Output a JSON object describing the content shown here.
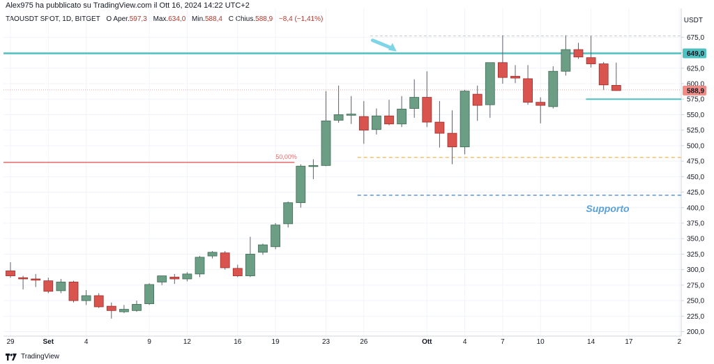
{
  "header": {
    "publisher": "Alex975 ha pubblicato su TradingView.com il Ott 16, 2024 14:22 UTC+2"
  },
  "legend": {
    "symbol": "TAOUSDT SPOT, 1D, BITGET",
    "open_label": "O",
    "open_key": "Aper.",
    "open": "597,3",
    "high_key": "Max.",
    "high": "634,0",
    "low_key": "Min.",
    "low": "588,4",
    "close_label": "C",
    "close_key": "Chius.",
    "close": "588,9",
    "change": "−8,4 (−1,41%)"
  },
  "currency": "USDT",
  "footer": {
    "brand": "TradingView"
  },
  "colors": {
    "up": "#6c9e86",
    "down": "#d9534f",
    "resistance": "#4fc1c1",
    "support_label": "#5aa0d9",
    "fib": "#f0a3a3"
  },
  "chart_data": {
    "type": "candlestick",
    "y_axis": {
      "min": 195,
      "max": 690,
      "ticks": [
        200,
        225,
        250,
        275,
        300,
        325,
        350,
        375,
        400,
        425,
        450,
        475,
        500,
        525,
        550,
        575,
        600,
        625,
        650,
        675
      ],
      "tick_labels": [
        "200,0",
        "225,0",
        "250,0",
        "275,0",
        "300,0",
        "325,0",
        "350,0",
        "375,0",
        "400,0",
        "425,0",
        "450,0",
        "475,0",
        "500,0",
        "525,0",
        "550,0",
        "575,0",
        "600,0",
        "625,0",
        "650,0",
        "675,0"
      ]
    },
    "x_axis": {
      "labels": [
        {
          "i": 0,
          "label": "29"
        },
        {
          "i": 3,
          "label": "Set",
          "bold": true
        },
        {
          "i": 6,
          "label": "4"
        },
        {
          "i": 11,
          "label": "9"
        },
        {
          "i": 14,
          "label": "12"
        },
        {
          "i": 18,
          "label": "16"
        },
        {
          "i": 21,
          "label": "19"
        },
        {
          "i": 25,
          "label": "23"
        },
        {
          "i": 28,
          "label": "26"
        },
        {
          "i": 33,
          "label": "Ott",
          "bold": true
        },
        {
          "i": 36,
          "label": "4"
        },
        {
          "i": 39,
          "label": "7"
        },
        {
          "i": 42,
          "label": "10"
        },
        {
          "i": 46,
          "label": "14"
        },
        {
          "i": 49,
          "label": "17"
        },
        {
          "i": 53,
          "label": "2"
        }
      ]
    },
    "candles": [
      {
        "o": 298,
        "h": 312,
        "l": 287,
        "c": 290
      },
      {
        "o": 287,
        "h": 290,
        "l": 268,
        "c": 285
      },
      {
        "o": 285,
        "h": 293,
        "l": 272,
        "c": 283
      },
      {
        "o": 282,
        "h": 287,
        "l": 262,
        "c": 265
      },
      {
        "o": 266,
        "h": 285,
        "l": 262,
        "c": 280
      },
      {
        "o": 280,
        "h": 282,
        "l": 247,
        "c": 250
      },
      {
        "o": 250,
        "h": 267,
        "l": 243,
        "c": 258
      },
      {
        "o": 258,
        "h": 262,
        "l": 238,
        "c": 240
      },
      {
        "o": 241,
        "h": 247,
        "l": 221,
        "c": 234
      },
      {
        "o": 232,
        "h": 243,
        "l": 230,
        "c": 236
      },
      {
        "o": 234,
        "h": 250,
        "l": 232,
        "c": 244
      },
      {
        "o": 245,
        "h": 278,
        "l": 243,
        "c": 276
      },
      {
        "o": 280,
        "h": 290,
        "l": 275,
        "c": 290
      },
      {
        "o": 288,
        "h": 293,
        "l": 277,
        "c": 285
      },
      {
        "o": 285,
        "h": 296,
        "l": 281,
        "c": 293
      },
      {
        "o": 293,
        "h": 322,
        "l": 288,
        "c": 320
      },
      {
        "o": 322,
        "h": 330,
        "l": 318,
        "c": 328
      },
      {
        "o": 327,
        "h": 330,
        "l": 300,
        "c": 303
      },
      {
        "o": 302,
        "h": 308,
        "l": 288,
        "c": 290
      },
      {
        "o": 290,
        "h": 353,
        "l": 288,
        "c": 325
      },
      {
        "o": 328,
        "h": 342,
        "l": 324,
        "c": 340
      },
      {
        "o": 337,
        "h": 375,
        "l": 333,
        "c": 372
      },
      {
        "o": 374,
        "h": 410,
        "l": 368,
        "c": 408
      },
      {
        "o": 408,
        "h": 470,
        "l": 400,
        "c": 467
      },
      {
        "o": 468,
        "h": 478,
        "l": 446,
        "c": 468
      },
      {
        "o": 468,
        "h": 588,
        "l": 467,
        "c": 540
      },
      {
        "o": 541,
        "h": 597,
        "l": 537,
        "c": 550
      },
      {
        "o": 549,
        "h": 580,
        "l": 535,
        "c": 551
      },
      {
        "o": 547,
        "h": 572,
        "l": 503,
        "c": 525
      },
      {
        "o": 526,
        "h": 560,
        "l": 518,
        "c": 548
      },
      {
        "o": 548,
        "h": 574,
        "l": 533,
        "c": 535
      },
      {
        "o": 535,
        "h": 580,
        "l": 530,
        "c": 559
      },
      {
        "o": 560,
        "h": 607,
        "l": 545,
        "c": 578
      },
      {
        "o": 578,
        "h": 620,
        "l": 530,
        "c": 538
      },
      {
        "o": 538,
        "h": 572,
        "l": 497,
        "c": 520
      },
      {
        "o": 520,
        "h": 557,
        "l": 470,
        "c": 498
      },
      {
        "o": 498,
        "h": 590,
        "l": 486,
        "c": 588
      },
      {
        "o": 583,
        "h": 597,
        "l": 540,
        "c": 565
      },
      {
        "o": 566,
        "h": 634,
        "l": 545,
        "c": 634
      },
      {
        "o": 634,
        "h": 678,
        "l": 600,
        "c": 610
      },
      {
        "o": 612,
        "h": 630,
        "l": 601,
        "c": 609
      },
      {
        "o": 608,
        "h": 630,
        "l": 566,
        "c": 570
      },
      {
        "o": 570,
        "h": 578,
        "l": 536,
        "c": 565
      },
      {
        "o": 563,
        "h": 628,
        "l": 560,
        "c": 620
      },
      {
        "o": 620,
        "h": 678,
        "l": 613,
        "c": 655
      },
      {
        "o": 655,
        "h": 666,
        "l": 640,
        "c": 643
      },
      {
        "o": 642,
        "h": 677,
        "l": 626,
        "c": 632
      },
      {
        "o": 632,
        "h": 635,
        "l": 590,
        "c": 598
      },
      {
        "o": 597.3,
        "h": 634,
        "l": 588.4,
        "c": 588.9
      }
    ],
    "levels": {
      "resistance": 649.0,
      "resistance_label": "649,0",
      "last_price": 588.9,
      "last_price_label": "588,9",
      "support": 575,
      "fib_50": 473,
      "fib_label": "50,00%",
      "dashed_orange": 481,
      "dashed_blue": 420,
      "dotted_top": 677,
      "dotted_low": 590
    },
    "annotation": {
      "text": "Supporto"
    }
  }
}
